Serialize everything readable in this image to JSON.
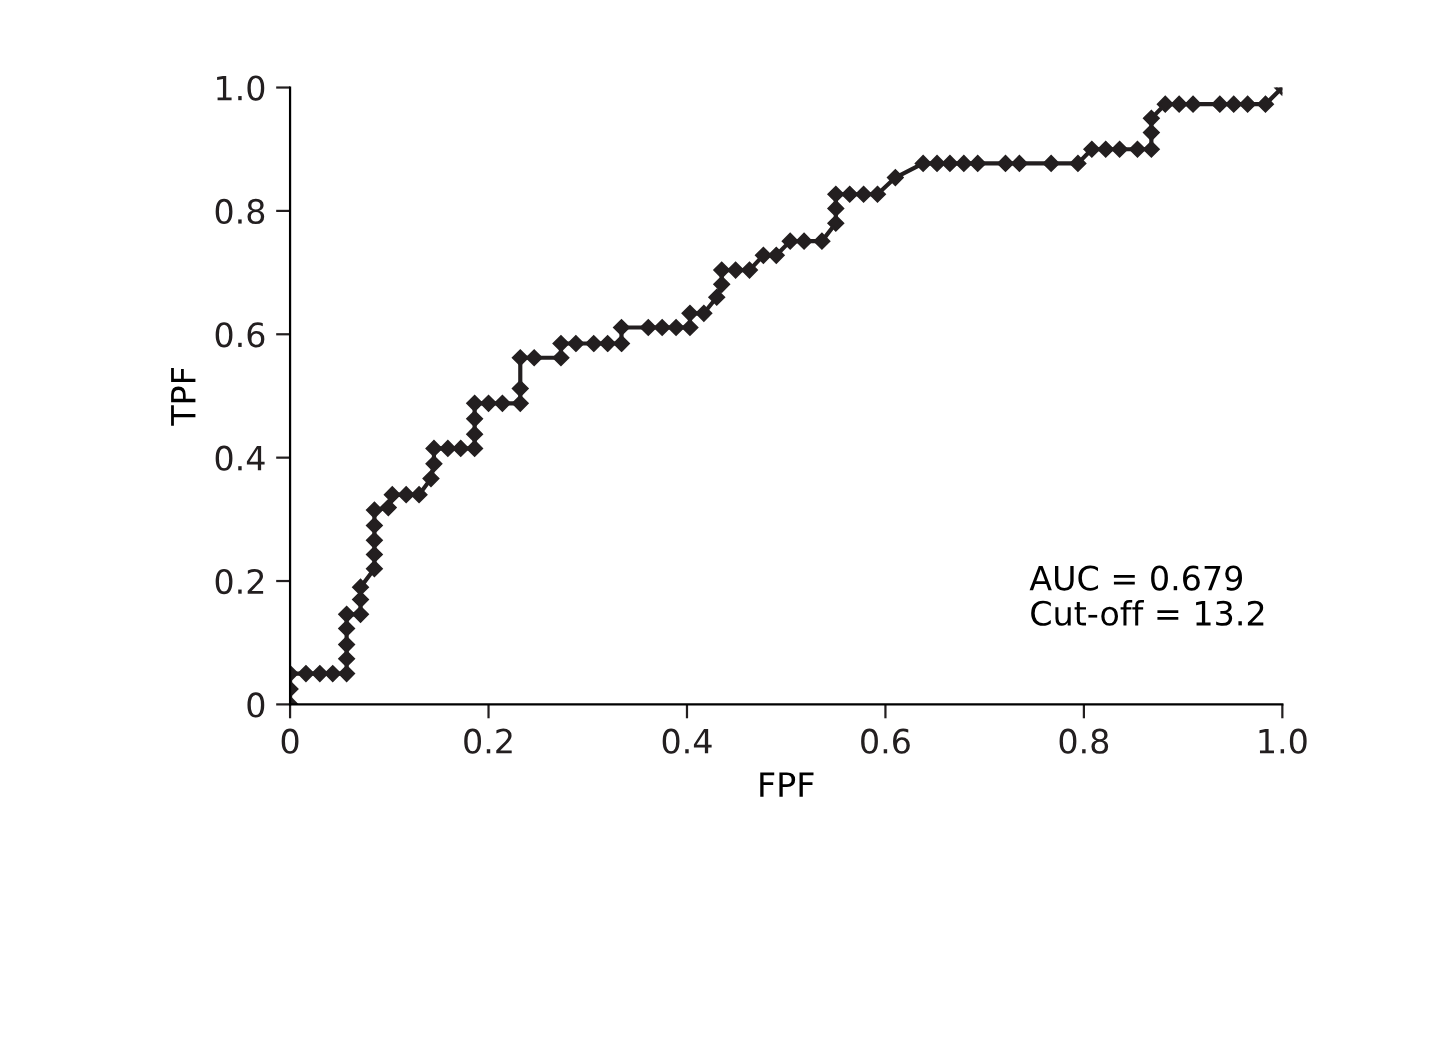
{
  "chart_data": {
    "type": "line",
    "xlabel": "FPF",
    "ylabel": "TPF",
    "marker": "diamond",
    "line_style": "solid",
    "grid": false,
    "legend": false,
    "xlim": [
      0,
      1
    ],
    "ylim": [
      0,
      1
    ],
    "xticks": [
      0,
      0.2,
      0.4,
      0.6,
      0.8,
      {
        "value": 1,
        "label": "1.0"
      }
    ],
    "yticks": [
      0,
      0.2,
      0.4,
      0.6,
      0.8,
      {
        "value": 1,
        "label": "1.0"
      }
    ],
    "annotations": [
      "AUC = 0.679",
      "Cut-off = 13.2"
    ],
    "series": [
      {
        "color": "#231f20",
        "x": [
          0,
          0,
          0,
          0.016,
          0.03,
          0.043,
          0.057,
          0.057,
          0.057,
          0.057,
          0.057,
          0.071,
          0.071,
          0.071,
          0.085,
          0.085,
          0.085,
          0.085,
          0.085,
          0.099,
          0.103,
          0.117,
          0.13,
          0.142,
          0.145,
          0.145,
          0.159,
          0.172,
          0.186,
          0.186,
          0.186,
          0.186,
          0.2,
          0.214,
          0.232,
          0.232,
          0.232,
          0.246,
          0.273,
          0.273,
          0.288,
          0.306,
          0.32,
          0.334,
          0.334,
          0.361,
          0.375,
          0.389,
          0.403,
          0.403,
          0.417,
          0.43,
          0.435,
          0.435,
          0.449,
          0.463,
          0.477,
          0.49,
          0.504,
          0.518,
          0.536,
          0.55,
          0.55,
          0.55,
          0.564,
          0.578,
          0.592,
          0.61,
          0.638,
          0.652,
          0.665,
          0.679,
          0.693,
          0.721,
          0.735,
          0.767,
          0.794,
          0.808,
          0.822,
          0.836,
          0.854,
          0.868,
          0.868,
          0.868,
          0.882,
          0.896,
          0.91,
          0.937,
          0.951,
          0.965,
          0.983,
          1
        ],
        "values": [
          0,
          0.025,
          0.05,
          0.05,
          0.05,
          0.05,
          0.05,
          0.074,
          0.097,
          0.123,
          0.146,
          0.146,
          0.17,
          0.19,
          0.22,
          0.243,
          0.266,
          0.29,
          0.315,
          0.319,
          0.34,
          0.34,
          0.34,
          0.366,
          0.39,
          0.415,
          0.415,
          0.415,
          0.415,
          0.438,
          0.463,
          0.488,
          0.488,
          0.488,
          0.488,
          0.512,
          0.562,
          0.562,
          0.562,
          0.585,
          0.585,
          0.585,
          0.585,
          0.585,
          0.611,
          0.611,
          0.611,
          0.611,
          0.611,
          0.634,
          0.634,
          0.66,
          0.681,
          0.704,
          0.704,
          0.704,
          0.728,
          0.728,
          0.751,
          0.751,
          0.751,
          0.78,
          0.804,
          0.827,
          0.827,
          0.827,
          0.827,
          0.854,
          0.877,
          0.877,
          0.877,
          0.877,
          0.877,
          0.877,
          0.877,
          0.877,
          0.877,
          0.9,
          0.9,
          0.9,
          0.9,
          0.9,
          0.927,
          0.95,
          0.973,
          0.973,
          0.973,
          0.973,
          0.973,
          0.973,
          0.973,
          1
        ]
      }
    ]
  }
}
